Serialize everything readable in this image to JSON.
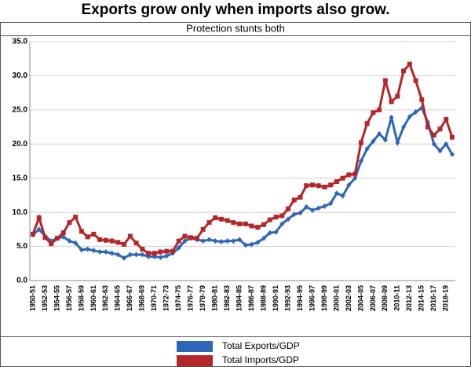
{
  "chart_data": {
    "type": "line",
    "title": "Exports grow only when imports also grow.",
    "subtitle": "Protection stunts both",
    "categories": [
      "1950-51",
      null,
      "1952-53",
      null,
      "1954-55",
      null,
      "1956-57",
      null,
      "1958-59",
      null,
      "1960-61",
      null,
      "1962-63",
      null,
      "1964-65",
      null,
      "1966-67",
      null,
      "1968-69",
      null,
      "1970-71",
      null,
      "1972-73",
      null,
      "1974-75",
      null,
      "1976-77",
      null,
      "1978-79",
      null,
      "1980-81",
      null,
      "1982-83",
      null,
      "1984-85",
      null,
      "1986-87",
      null,
      "1988-89",
      null,
      "1990-91",
      null,
      "1992-93",
      null,
      "1994-95",
      null,
      "1996-97",
      null,
      "1998-99",
      null,
      "2000-01",
      null,
      "2002-03",
      null,
      "2004-05",
      null,
      "2006-07",
      null,
      "2008-09",
      null,
      "2010-11",
      null,
      "2012-13",
      null,
      "2014-15",
      null,
      "2016-17",
      null,
      "2018-19",
      null
    ],
    "series": [
      {
        "name": "Total Exports/GDP",
        "color": "#2e67b8",
        "marker": "diamond",
        "values": [
          6.7,
          7.5,
          6.5,
          5.8,
          6.2,
          6.4,
          5.8,
          5.5,
          4.5,
          4.6,
          4.4,
          4.2,
          4.2,
          4.0,
          3.8,
          3.3,
          3.8,
          3.8,
          3.8,
          3.5,
          3.5,
          3.4,
          3.6,
          4.0,
          4.8,
          5.8,
          6.2,
          6.0,
          5.8,
          6.0,
          5.8,
          5.7,
          5.8,
          5.8,
          6.0,
          5.2,
          5.3,
          5.6,
          6.2,
          7.0,
          7.1,
          8.3,
          9.0,
          9.7,
          9.9,
          10.8,
          10.3,
          10.6,
          10.9,
          11.3,
          12.8,
          12.4,
          14.0,
          15.0,
          17.5,
          19.3,
          20.4,
          21.5,
          20.6,
          23.9,
          20.2,
          22.5,
          24.0,
          24.7,
          25.3,
          23.2,
          20.0,
          19.0,
          20.0,
          18.5
        ]
      },
      {
        "name": "Total Imports/GDP",
        "color": "#b3262a",
        "marker": "square",
        "values": [
          6.8,
          9.2,
          6.3,
          5.4,
          6.2,
          7.0,
          8.5,
          9.3,
          7.2,
          6.4,
          6.8,
          6.0,
          5.9,
          5.8,
          5.6,
          5.3,
          6.5,
          5.5,
          4.6,
          4.0,
          4.0,
          4.2,
          4.3,
          4.3,
          5.8,
          6.5,
          6.3,
          6.2,
          7.5,
          8.5,
          9.2,
          9.0,
          8.8,
          8.5,
          8.3,
          8.3,
          8.0,
          7.8,
          8.2,
          8.9,
          9.3,
          9.5,
          10.5,
          11.8,
          12.2,
          13.9,
          14.0,
          13.9,
          13.7,
          14.0,
          14.5,
          15.0,
          15.5,
          15.6,
          20.2,
          23.0,
          24.6,
          25.0,
          29.3,
          26.2,
          27.0,
          30.7,
          31.7,
          29.3,
          26.5,
          22.5,
          21.3,
          22.2,
          23.6,
          21.0
        ]
      }
    ],
    "ylim": [
      0,
      35
    ],
    "yticks": [
      {
        "value": 0,
        "label": "0.0"
      },
      {
        "value": 5,
        "label": "5.0"
      },
      {
        "value": 10,
        "label": "10.0"
      },
      {
        "value": 15,
        "label": "15.0"
      },
      {
        "value": 20,
        "label": "20.0"
      },
      {
        "value": 25,
        "label": "25.0"
      },
      {
        "value": 30,
        "label": "30.0"
      },
      {
        "value": 35,
        "label": "35.0"
      }
    ],
    "grid": true
  }
}
